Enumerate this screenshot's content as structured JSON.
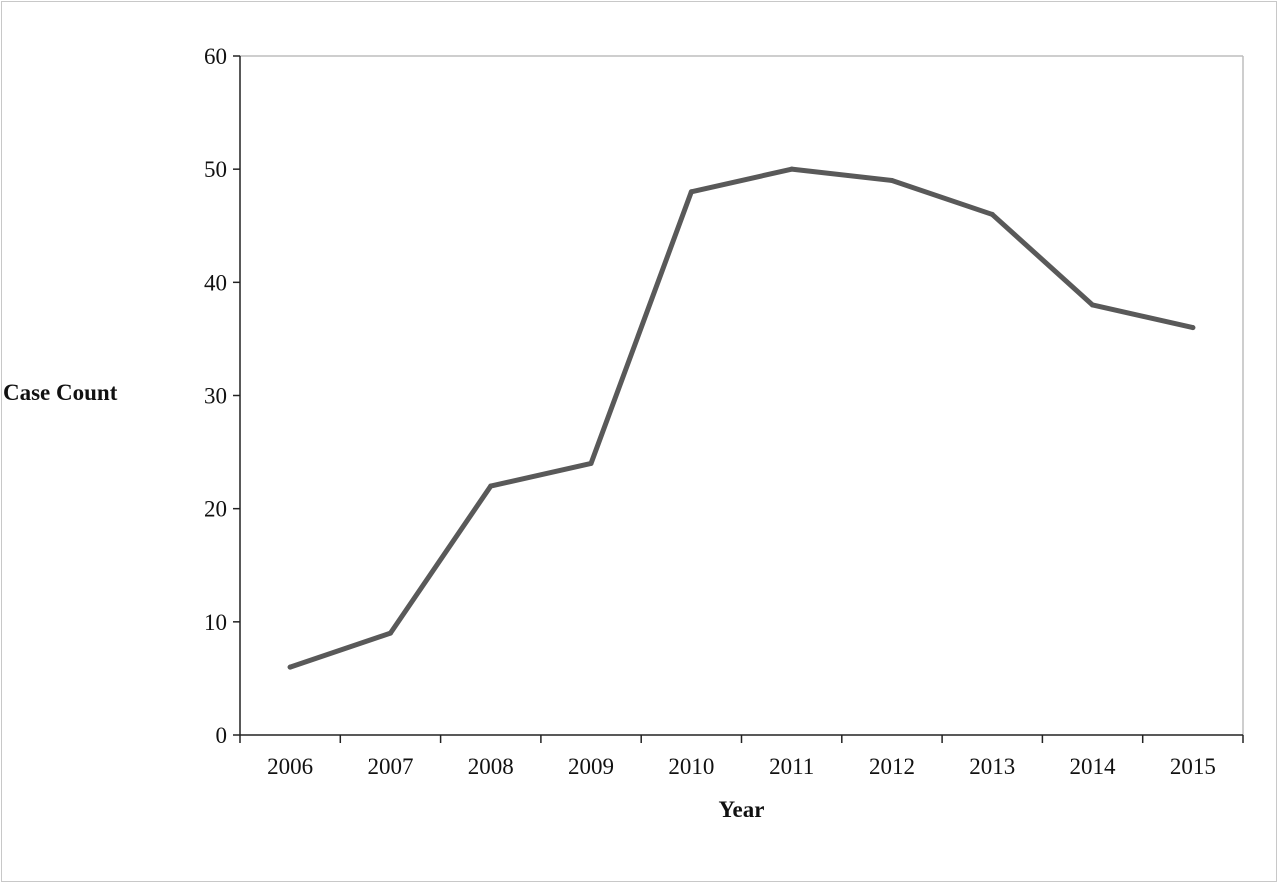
{
  "chart_data": {
    "type": "line",
    "title": "",
    "xlabel": "Year",
    "ylabel": "Case Count",
    "x": [
      "2006",
      "2007",
      "2008",
      "2009",
      "2010",
      "2011",
      "2012",
      "2013",
      "2014",
      "2015"
    ],
    "series": [
      {
        "values": [
          6,
          9,
          22,
          24,
          48,
          50,
          49,
          46,
          38,
          36
        ]
      }
    ],
    "ylim": [
      0,
      60
    ],
    "yticks": [
      "0",
      "10",
      "20",
      "30",
      "40",
      "50",
      "60"
    ],
    "grid": false,
    "legend": "none",
    "colors": {
      "line": "#595959",
      "axis": "#222222",
      "plot_border": "#bdbdbd"
    }
  }
}
